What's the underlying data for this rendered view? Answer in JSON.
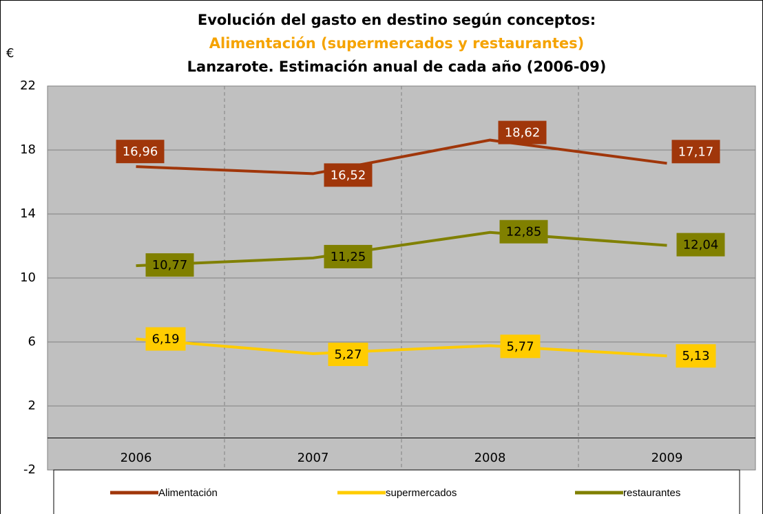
{
  "chart_data": {
    "type": "line",
    "title_lines": [
      "Evolución del gasto en destino según conceptos:",
      "Alimentación (supermercados y restaurantes)",
      "Lanzarote. Estimación anual de cada año (2006-09)"
    ],
    "y_label": "€",
    "categories": [
      "2006",
      "2007",
      "2008",
      "2009"
    ],
    "series": [
      {
        "name": "Alimentación",
        "color": "#a0360a",
        "values": [
          16.96,
          16.52,
          18.62,
          17.17
        ],
        "value_labels": [
          "16,96",
          "16,52",
          "18,62",
          "17,17"
        ]
      },
      {
        "name": "supermercados",
        "color": "#ffcc00",
        "values": [
          6.19,
          5.27,
          5.77,
          5.13
        ],
        "value_labels": [
          "6,19",
          "5,27",
          "5,77",
          "5,13"
        ]
      },
      {
        "name": "restaurantes",
        "color": "#808000",
        "values": [
          10.77,
          11.25,
          12.85,
          12.04
        ],
        "value_labels": [
          "10,77",
          "11,25",
          "12,85",
          "12,04"
        ]
      }
    ],
    "ylim": [
      -2,
      22
    ],
    "yticks": [
      -2,
      2,
      6,
      10,
      14,
      18,
      22
    ],
    "grid": true,
    "legend": "bottom"
  }
}
